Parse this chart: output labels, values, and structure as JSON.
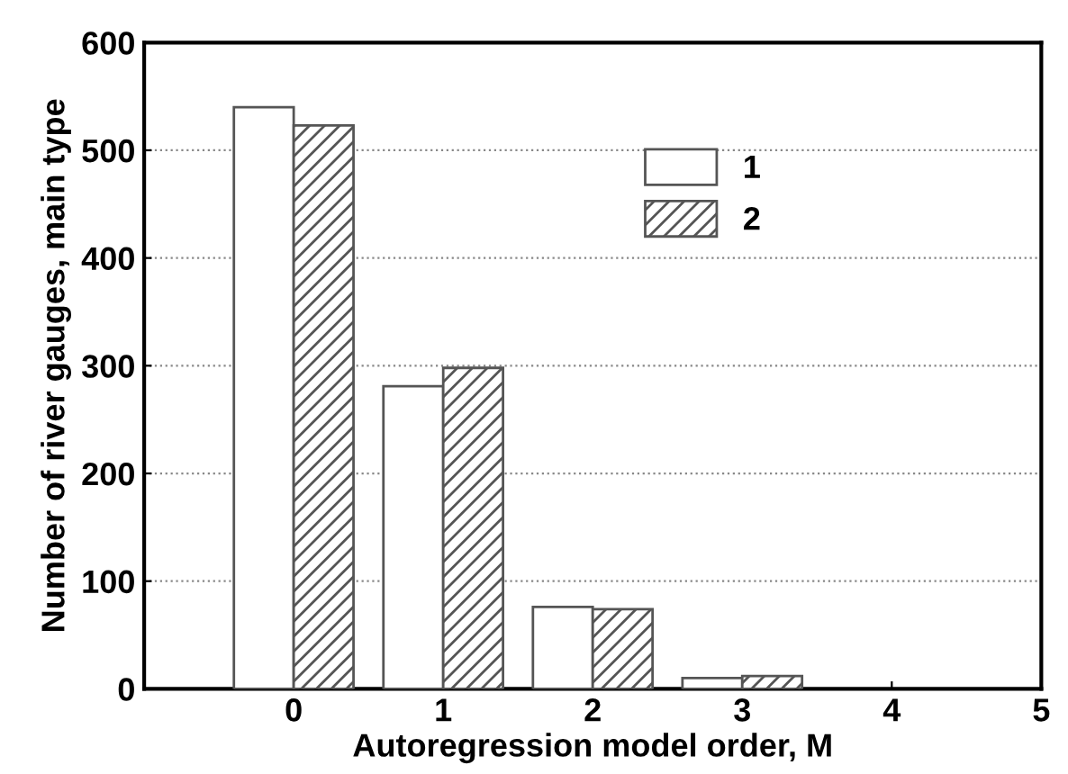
{
  "chart_data": {
    "type": "bar",
    "xlabel": "Autoregression model order, M",
    "ylabel": "Number of river gauges, main type",
    "x": [
      0,
      1,
      2,
      3
    ],
    "series": [
      {
        "name": "1",
        "color": "#ffffff",
        "values": [
          540,
          281,
          76,
          10
        ]
      },
      {
        "name": "2",
        "color": "#555555",
        "values": [
          523,
          298,
          74,
          12
        ]
      }
    ],
    "xlim": [
      -1,
      5
    ],
    "xticks": [
      0,
      1,
      2,
      3,
      4,
      5
    ],
    "ylim": [
      0,
      600
    ],
    "yticks": [
      0,
      100,
      200,
      300,
      400,
      500,
      600
    ],
    "grid": "y",
    "legend": "top right"
  }
}
